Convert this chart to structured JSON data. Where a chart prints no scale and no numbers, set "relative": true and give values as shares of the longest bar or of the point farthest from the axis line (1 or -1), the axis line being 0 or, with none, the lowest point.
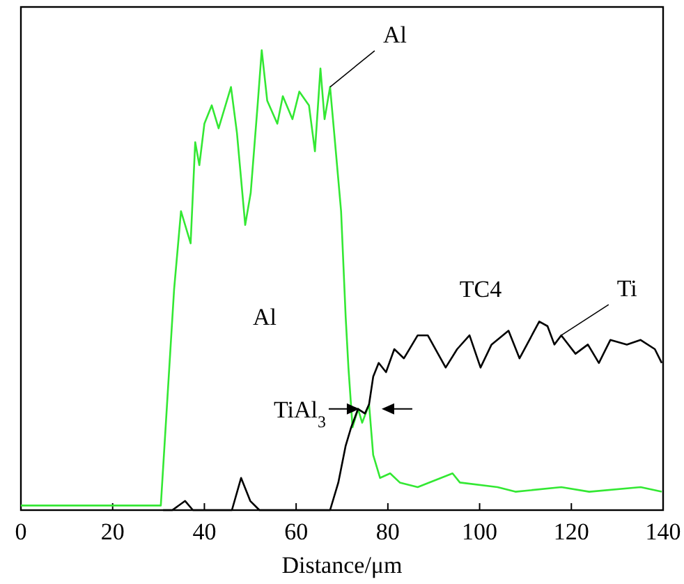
{
  "chart_data": {
    "type": "line",
    "relative": true,
    "xlabel": "Distance/μm",
    "xlim": [
      0,
      140
    ],
    "xticks": [
      0,
      20,
      40,
      60,
      80,
      100,
      120,
      140
    ],
    "marker": "none",
    "line_style": "solid",
    "grid": false,
    "legend": false,
    "series": [
      {
        "name": "Al",
        "color": "#33e833",
        "x": [
          0,
          10,
          20,
          30,
          30.5,
          33.4,
          34.9,
          37,
          38,
          38.9,
          40,
          41.6,
          43.1,
          45.8,
          47.1,
          48.9,
          50.1,
          51.6,
          52.5,
          53.7,
          55.9,
          57.1,
          59.2,
          60.7,
          62.8,
          64.1,
          65.3,
          66.2,
          67.4,
          68.3,
          69.8,
          70.8,
          71.4,
          72.3,
          73.5,
          74.4,
          75.9,
          76.8,
          78.3,
          80.5,
          82.6,
          86.5,
          94.1,
          95.7,
          103.9,
          107.8,
          117.8,
          123.9,
          135.1,
          139.7
        ],
        "values": [
          0.01,
          0.01,
          0.01,
          0.01,
          0.01,
          0.48,
          0.65,
          0.58,
          0.8,
          0.75,
          0.84,
          0.88,
          0.83,
          0.92,
          0.82,
          0.62,
          0.69,
          0.88,
          1,
          0.89,
          0.84,
          0.9,
          0.85,
          0.91,
          0.88,
          0.78,
          0.96,
          0.85,
          0.92,
          0.82,
          0.65,
          0.42,
          0.31,
          0.18,
          0.22,
          0.19,
          0.23,
          0.12,
          0.07,
          0.08,
          0.06,
          0.05,
          0.08,
          0.06,
          0.05,
          0.04,
          0.05,
          0.04,
          0.05,
          0.04
        ]
      },
      {
        "name": "Ti",
        "color": "#000000",
        "x": [
          31,
          33,
          35.8,
          37.5,
          46,
          48,
          50,
          52,
          60,
          67.4,
          69.2,
          70.8,
          72,
          73.5,
          75,
          75.9,
          76.8,
          78,
          79.6,
          81.4,
          83.5,
          86.5,
          88.7,
          92.6,
          95.1,
          97.8,
          100.2,
          102.6,
          106.3,
          108.7,
          113,
          114.8,
          116.3,
          117.8,
          120.9,
          123.6,
          126,
          128.5,
          132.1,
          135.1,
          138.2,
          139.7
        ],
        "values": [
          0,
          0,
          0.02,
          0,
          0,
          0.07,
          0.02,
          0,
          0,
          0,
          0.06,
          0.14,
          0.18,
          0.22,
          0.21,
          0.23,
          0.29,
          0.32,
          0.3,
          0.35,
          0.33,
          0.38,
          0.38,
          0.31,
          0.35,
          0.38,
          0.31,
          0.36,
          0.39,
          0.33,
          0.41,
          0.4,
          0.36,
          0.38,
          0.34,
          0.36,
          0.32,
          0.37,
          0.36,
          0.37,
          0.35,
          0.32
        ]
      }
    ],
    "annotations": [
      "Al",
      "TC4",
      {
        "text": "TiAl$_{3}$",
        "x": 75,
        "y": 0.22
      }
    ]
  }
}
